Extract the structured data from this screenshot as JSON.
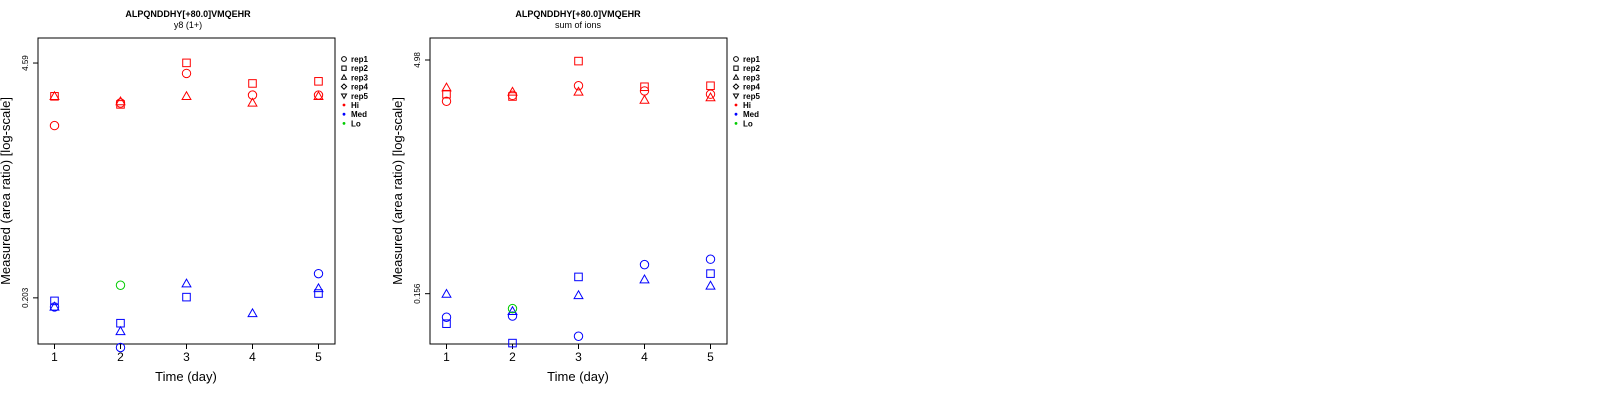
{
  "chart_data": [
    {
      "type": "scatter",
      "title": "ALPQNDDHY[+80.0]VMQEHR",
      "subtitle": "y8 (1+)",
      "xlabel": "Time (day)",
      "ylabel": "Measured (area ratio) [log-scale]",
      "y_scale": "log",
      "xlim": [
        0.75,
        5.25
      ],
      "ylim": [
        0.11,
        6.4
      ],
      "x_ticks": [
        1,
        2,
        3,
        4,
        5
      ],
      "y_ticks": [
        0.203,
        4.59
      ],
      "y_tick_labels": [
        "0.203",
        "4.59"
      ],
      "legend": {
        "placement": "right",
        "entries": [
          {
            "label": "rep1",
            "marker": "circle"
          },
          {
            "label": "rep2",
            "marker": "square"
          },
          {
            "label": "rep3",
            "marker": "triangle-up"
          },
          {
            "label": "rep4",
            "marker": "diamond"
          },
          {
            "label": "rep5",
            "marker": "triangle-down"
          },
          {
            "label": "Hi",
            "marker": "dot",
            "color": "#ff0000"
          },
          {
            "label": "Med",
            "marker": "dot",
            "color": "#0000ff"
          },
          {
            "label": "Lo",
            "marker": "dot",
            "color": "#00cc00"
          }
        ]
      },
      "points": [
        {
          "x": 1,
          "y": 2.0,
          "group": "Hi",
          "rep": "rep1"
        },
        {
          "x": 1,
          "y": 2.95,
          "group": "Hi",
          "rep": "rep2"
        },
        {
          "x": 1,
          "y": 2.95,
          "group": "Hi",
          "rep": "rep3"
        },
        {
          "x": 2,
          "y": 2.7,
          "group": "Hi",
          "rep": "rep1"
        },
        {
          "x": 2,
          "y": 2.65,
          "group": "Hi",
          "rep": "rep2"
        },
        {
          "x": 2,
          "y": 2.75,
          "group": "Hi",
          "rep": "rep3"
        },
        {
          "x": 3,
          "y": 4.0,
          "group": "Hi",
          "rep": "rep1"
        },
        {
          "x": 3,
          "y": 4.6,
          "group": "Hi",
          "rep": "rep2"
        },
        {
          "x": 3,
          "y": 2.95,
          "group": "Hi",
          "rep": "rep3"
        },
        {
          "x": 4,
          "y": 3.0,
          "group": "Hi",
          "rep": "rep1"
        },
        {
          "x": 4,
          "y": 3.5,
          "group": "Hi",
          "rep": "rep2"
        },
        {
          "x": 4,
          "y": 2.7,
          "group": "Hi",
          "rep": "rep3"
        },
        {
          "x": 5,
          "y": 3.0,
          "group": "Hi",
          "rep": "rep1"
        },
        {
          "x": 5,
          "y": 3.6,
          "group": "Hi",
          "rep": "rep2"
        },
        {
          "x": 5,
          "y": 2.95,
          "group": "Hi",
          "rep": "rep3"
        },
        {
          "x": 1,
          "y": 0.18,
          "group": "Med",
          "rep": "rep1"
        },
        {
          "x": 1,
          "y": 0.195,
          "group": "Med",
          "rep": "rep2"
        },
        {
          "x": 1,
          "y": 0.18,
          "group": "Med",
          "rep": "rep3"
        },
        {
          "x": 2,
          "y": 0.105,
          "group": "Med",
          "rep": "rep1"
        },
        {
          "x": 2,
          "y": 0.145,
          "group": "Med",
          "rep": "rep2"
        },
        {
          "x": 2,
          "y": 0.13,
          "group": "Med",
          "rep": "rep3"
        },
        {
          "x": 3,
          "y": 0.205,
          "group": "Med",
          "rep": "rep2"
        },
        {
          "x": 3,
          "y": 0.245,
          "group": "Med",
          "rep": "rep3"
        },
        {
          "x": 4,
          "y": 0.165,
          "group": "Med",
          "rep": "rep3"
        },
        {
          "x": 5,
          "y": 0.28,
          "group": "Med",
          "rep": "rep1"
        },
        {
          "x": 5,
          "y": 0.215,
          "group": "Med",
          "rep": "rep2"
        },
        {
          "x": 5,
          "y": 0.23,
          "group": "Med",
          "rep": "rep3"
        },
        {
          "x": 2,
          "y": 0.24,
          "group": "Lo",
          "rep": "rep1"
        }
      ]
    },
    {
      "type": "scatter",
      "title": "ALPQNDDHY[+80.0]VMQEHR",
      "subtitle": "sum of ions",
      "xlabel": "Time (day)",
      "ylabel": "Measured (area ratio) [log-scale]",
      "y_scale": "log",
      "xlim": [
        0.75,
        5.25
      ],
      "ylim": [
        0.074,
        6.9
      ],
      "x_ticks": [
        1,
        2,
        3,
        4,
        5
      ],
      "y_ticks": [
        0.156,
        4.98
      ],
      "y_tick_labels": [
        "0.156",
        "4.98"
      ],
      "legend": {
        "placement": "right",
        "entries": [
          {
            "label": "rep1",
            "marker": "circle"
          },
          {
            "label": "rep2",
            "marker": "square"
          },
          {
            "label": "rep3",
            "marker": "triangle-up"
          },
          {
            "label": "rep4",
            "marker": "diamond"
          },
          {
            "label": "rep5",
            "marker": "triangle-down"
          },
          {
            "label": "Hi",
            "marker": "dot",
            "color": "#ff0000"
          },
          {
            "label": "Med",
            "marker": "dot",
            "color": "#0000ff"
          },
          {
            "label": "Lo",
            "marker": "dot",
            "color": "#00cc00"
          }
        ]
      },
      "points": [
        {
          "x": 1,
          "y": 2.7,
          "group": "Hi",
          "rep": "rep1"
        },
        {
          "x": 1,
          "y": 3.0,
          "group": "Hi",
          "rep": "rep2"
        },
        {
          "x": 1,
          "y": 3.3,
          "group": "Hi",
          "rep": "rep3"
        },
        {
          "x": 2,
          "y": 2.95,
          "group": "Hi",
          "rep": "rep1"
        },
        {
          "x": 2,
          "y": 2.9,
          "group": "Hi",
          "rep": "rep2"
        },
        {
          "x": 2,
          "y": 3.1,
          "group": "Hi",
          "rep": "rep3"
        },
        {
          "x": 3,
          "y": 3.4,
          "group": "Hi",
          "rep": "rep1"
        },
        {
          "x": 3,
          "y": 4.9,
          "group": "Hi",
          "rep": "rep2"
        },
        {
          "x": 3,
          "y": 3.1,
          "group": "Hi",
          "rep": "rep3"
        },
        {
          "x": 4,
          "y": 3.15,
          "group": "Hi",
          "rep": "rep1"
        },
        {
          "x": 4,
          "y": 3.35,
          "group": "Hi",
          "rep": "rep2"
        },
        {
          "x": 4,
          "y": 2.75,
          "group": "Hi",
          "rep": "rep3"
        },
        {
          "x": 5,
          "y": 3.0,
          "group": "Hi",
          "rep": "rep1"
        },
        {
          "x": 5,
          "y": 3.4,
          "group": "Hi",
          "rep": "rep2"
        },
        {
          "x": 5,
          "y": 2.85,
          "group": "Hi",
          "rep": "rep3"
        },
        {
          "x": 1,
          "y": 0.11,
          "group": "Med",
          "rep": "rep1"
        },
        {
          "x": 1,
          "y": 0.1,
          "group": "Med",
          "rep": "rep2"
        },
        {
          "x": 1,
          "y": 0.155,
          "group": "Med",
          "rep": "rep3"
        },
        {
          "x": 2,
          "y": 0.112,
          "group": "Med",
          "rep": "rep1"
        },
        {
          "x": 2,
          "y": 0.075,
          "group": "Med",
          "rep": "rep2"
        },
        {
          "x": 2,
          "y": 0.12,
          "group": "Med",
          "rep": "rep3"
        },
        {
          "x": 3,
          "y": 0.083,
          "group": "Med",
          "rep": "rep1"
        },
        {
          "x": 3,
          "y": 0.2,
          "group": "Med",
          "rep": "rep2"
        },
        {
          "x": 3,
          "y": 0.152,
          "group": "Med",
          "rep": "rep3"
        },
        {
          "x": 4,
          "y": 0.24,
          "group": "Med",
          "rep": "rep1"
        },
        {
          "x": 4,
          "y": 0.192,
          "group": "Med",
          "rep": "rep3"
        },
        {
          "x": 5,
          "y": 0.26,
          "group": "Med",
          "rep": "rep1"
        },
        {
          "x": 5,
          "y": 0.21,
          "group": "Med",
          "rep": "rep2"
        },
        {
          "x": 5,
          "y": 0.175,
          "group": "Med",
          "rep": "rep3"
        },
        {
          "x": 2,
          "y": 0.125,
          "group": "Lo",
          "rep": "rep1"
        }
      ]
    }
  ],
  "colors": {
    "Hi": "#ff0000",
    "Med": "#0000ff",
    "Lo": "#00cc00",
    "axis": "#000000"
  }
}
